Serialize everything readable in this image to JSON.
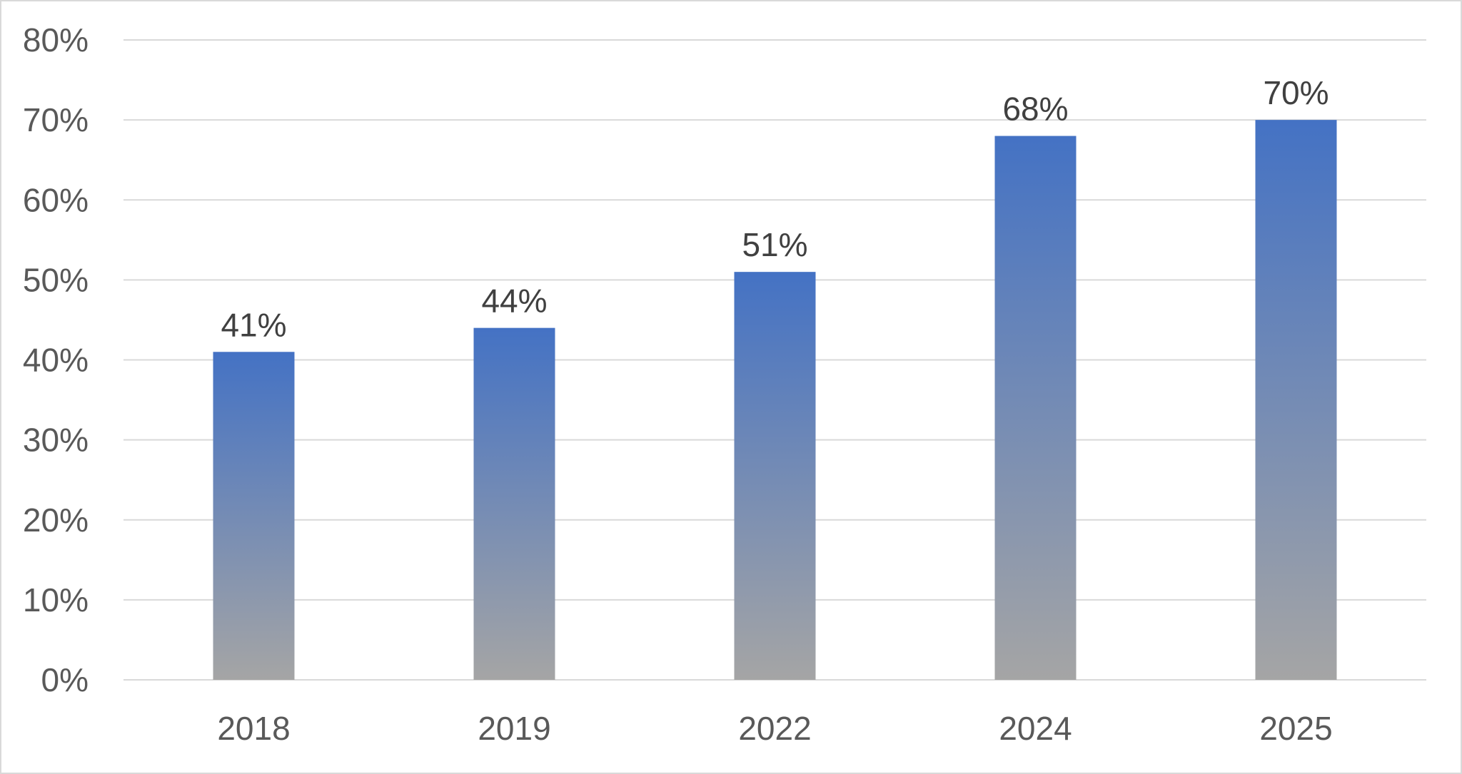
{
  "chart_data": {
    "type": "bar",
    "title": "",
    "xlabel": "",
    "ylabel": "",
    "categories": [
      "2018",
      "2019",
      "2022",
      "2024",
      "2025"
    ],
    "values": [
      41,
      44,
      51,
      68,
      70
    ],
    "data_labels": [
      "41%",
      "44%",
      "51%",
      "68%",
      "70%"
    ],
    "ylim": [
      0,
      80
    ],
    "y_ticks": [
      0,
      10,
      20,
      30,
      40,
      50,
      60,
      70,
      80
    ],
    "y_tick_labels": [
      "0%",
      "10%",
      "20%",
      "30%",
      "40%",
      "50%",
      "60%",
      "70%",
      "80%"
    ],
    "grid": true,
    "legend": "none",
    "colors": {
      "bar_top": "#4472c4",
      "bar_bottom": "#a5a5a5",
      "gridline": "#d9d9d9",
      "tick_text": "#595959",
      "label_text": "#404040",
      "border": "#d9d9d9"
    }
  }
}
